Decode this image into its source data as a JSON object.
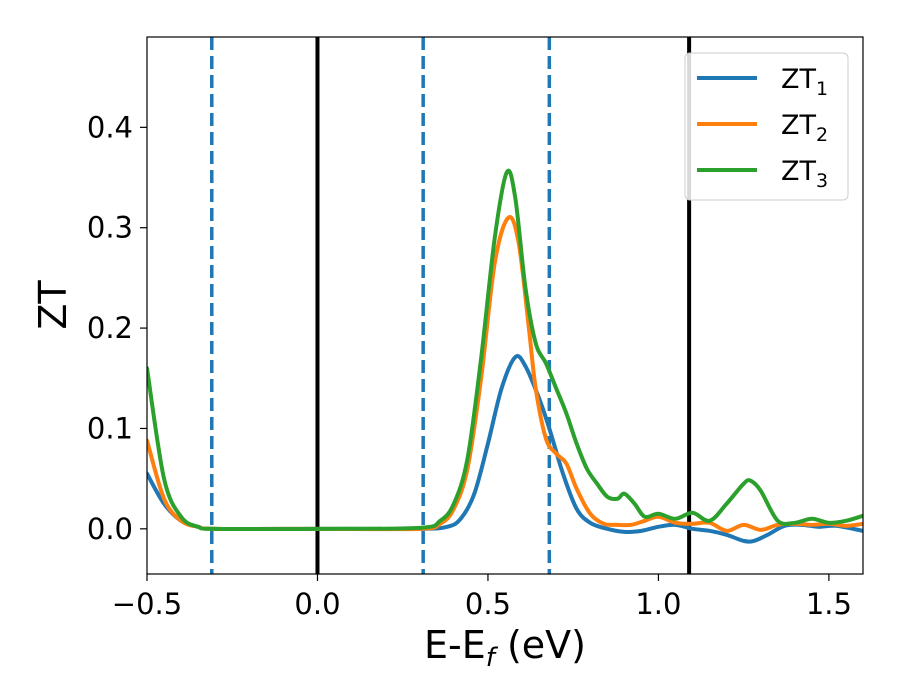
{
  "chart_data": {
    "type": "line",
    "xlabel": {
      "main": "E-E",
      "sub": "f",
      "suffix": " (eV)"
    },
    "ylabel": "ZT",
    "xlim": [
      -0.5,
      1.6
    ],
    "ylim": [
      -0.045,
      0.49
    ],
    "xticks": [
      -0.5,
      0.0,
      0.5,
      1.0,
      1.5
    ],
    "xtick_labels": [
      "−0.5",
      "0.0",
      "0.5",
      "1.0",
      "1.5"
    ],
    "yticks": [
      0.0,
      0.1,
      0.2,
      0.3,
      0.4
    ],
    "ytick_labels": [
      "0.0",
      "0.1",
      "0.2",
      "0.3",
      "0.4"
    ],
    "grid": false,
    "legend_position": "top-right",
    "vlines": [
      {
        "x": -0.31,
        "style": "dashed",
        "color": "#1f77b4"
      },
      {
        "x": 0.0,
        "style": "solid",
        "color": "#000000"
      },
      {
        "x": 0.31,
        "style": "dashed",
        "color": "#1f77b4"
      },
      {
        "x": 0.68,
        "style": "dashed",
        "color": "#1f77b4"
      },
      {
        "x": 1.09,
        "style": "solid",
        "color": "#000000"
      }
    ],
    "series": [
      {
        "name": "ZT",
        "name_sub": "1",
        "color": "#1f77b4",
        "x": [
          -0.5,
          -0.45,
          -0.4,
          -0.35,
          -0.3,
          0.0,
          0.3,
          0.38,
          0.42,
          0.46,
          0.5,
          0.54,
          0.58,
          0.61,
          0.65,
          0.68,
          0.72,
          0.76,
          0.8,
          0.85,
          0.9,
          0.95,
          1.0,
          1.05,
          1.1,
          1.15,
          1.2,
          1.25,
          1.28,
          1.32,
          1.37,
          1.42,
          1.47,
          1.52,
          1.6
        ],
        "y": [
          0.055,
          0.025,
          0.008,
          0.002,
          0.0,
          0.0,
          0.0,
          0.002,
          0.01,
          0.035,
          0.085,
          0.14,
          0.171,
          0.162,
          0.13,
          0.1,
          0.055,
          0.02,
          0.006,
          0.0,
          -0.003,
          -0.002,
          0.002,
          0.004,
          0.0,
          -0.002,
          -0.006,
          -0.012,
          -0.012,
          -0.006,
          0.003,
          0.004,
          0.002,
          0.003,
          -0.002
        ]
      },
      {
        "name": "ZT",
        "name_sub": "2",
        "color": "#ff7f0e",
        "x": [
          -0.5,
          -0.45,
          -0.4,
          -0.35,
          -0.3,
          0.0,
          0.3,
          0.36,
          0.4,
          0.44,
          0.48,
          0.52,
          0.56,
          0.59,
          0.62,
          0.64,
          0.67,
          0.7,
          0.73,
          0.76,
          0.8,
          0.84,
          0.88,
          0.92,
          0.96,
          1.0,
          1.05,
          1.1,
          1.15,
          1.2,
          1.25,
          1.3,
          1.35,
          1.4,
          1.45,
          1.5,
          1.55,
          1.6
        ],
        "y": [
          0.088,
          0.03,
          0.008,
          0.002,
          0.0,
          0.0,
          0.0,
          0.005,
          0.02,
          0.06,
          0.15,
          0.265,
          0.31,
          0.285,
          0.2,
          0.14,
          0.09,
          0.075,
          0.065,
          0.04,
          0.015,
          0.005,
          0.004,
          0.004,
          0.008,
          0.012,
          0.006,
          0.005,
          0.006,
          -0.002,
          0.004,
          -0.001,
          0.004,
          0.005,
          0.004,
          0.005,
          0.003,
          0.005
        ]
      },
      {
        "name": "ZT",
        "name_sub": "3",
        "color": "#2ca02c",
        "x": [
          -0.5,
          -0.45,
          -0.4,
          -0.35,
          -0.3,
          0.0,
          0.3,
          0.36,
          0.4,
          0.44,
          0.48,
          0.52,
          0.555,
          0.58,
          0.61,
          0.64,
          0.67,
          0.7,
          0.73,
          0.76,
          0.79,
          0.82,
          0.85,
          0.88,
          0.9,
          0.93,
          0.96,
          1.0,
          1.05,
          1.1,
          1.15,
          1.2,
          1.25,
          1.27,
          1.3,
          1.35,
          1.4,
          1.45,
          1.5,
          1.55,
          1.6
        ],
        "y": [
          0.16,
          0.05,
          0.012,
          0.002,
          0.0,
          0.0,
          0.001,
          0.008,
          0.025,
          0.07,
          0.17,
          0.29,
          0.355,
          0.33,
          0.24,
          0.185,
          0.165,
          0.14,
          0.115,
          0.085,
          0.06,
          0.045,
          0.032,
          0.03,
          0.035,
          0.025,
          0.012,
          0.015,
          0.01,
          0.016,
          0.008,
          0.025,
          0.045,
          0.048,
          0.038,
          0.008,
          0.006,
          0.01,
          0.006,
          0.008,
          0.013
        ]
      }
    ]
  }
}
